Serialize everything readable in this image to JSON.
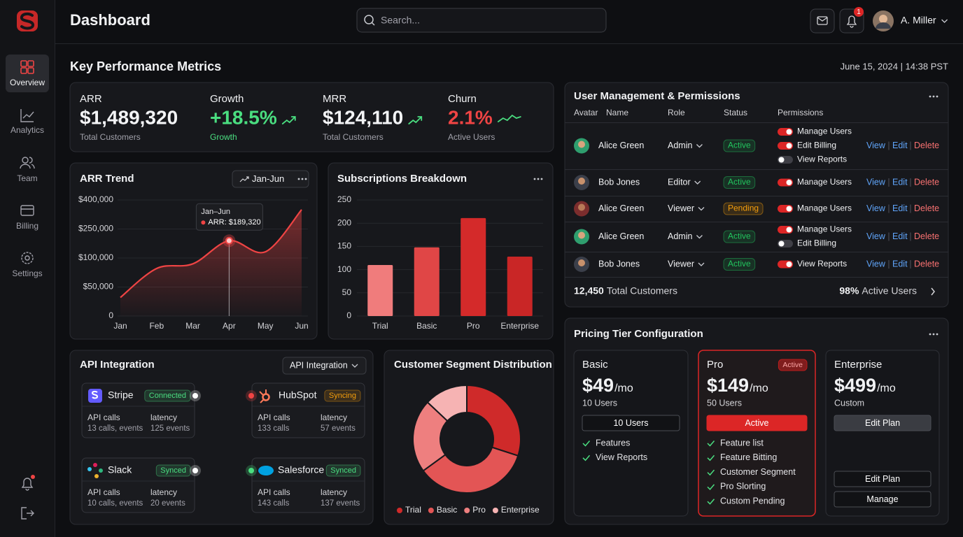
{
  "sidebar": {
    "nav": [
      "Overview",
      "Analytics",
      "Team",
      "Billing",
      "Settings"
    ]
  },
  "header": {
    "title": "Dashboard",
    "search_placeholder": "Search...",
    "notifications": 1,
    "user": "A. Miller"
  },
  "kpi": {
    "title": "Key Performance Metrics",
    "timestamp": "June 15, 2024 | 14:38 PST",
    "metrics": [
      {
        "label": "ARR",
        "value": "$1,489,320",
        "sub": "Total Customers",
        "color": "#f3f4f6",
        "sub_color": "#a1a1aa"
      },
      {
        "label": "Growth",
        "value": "+18.5%",
        "sub": "Growth",
        "color": "#4ade80",
        "sub_color": "#4ade80"
      },
      {
        "label": "MRR",
        "value": "$124,110",
        "sub": "Total Customers",
        "color": "#f3f4f6",
        "sub_color": "#a1a1aa"
      },
      {
        "label": "Churn",
        "value": "2.1%",
        "sub": "Active Users",
        "color": "#ef4444",
        "sub_color": "#a1a1aa"
      }
    ]
  },
  "chart_data": [
    {
      "type": "line",
      "title": "ARR Trend",
      "range": "Jan-Jun",
      "categories": [
        "Jan",
        "Feb",
        "Mar",
        "Apr",
        "May",
        "Jun"
      ],
      "values": [
        32000,
        82000,
        90000,
        189320,
        132000,
        350000
      ],
      "value_labels": [
        null,
        null,
        null,
        "ARR: $189,320",
        null,
        null
      ],
      "tooltip_title": "Jan–Jun",
      "color": "#ef4444",
      "ylim": [
        0,
        400000
      ],
      "yticks": [
        0,
        {
          "value": 50000,
          "label": "$50,000"
        },
        {
          "value": 100000,
          "label": "$100,000"
        },
        {
          "value": 250000,
          "label": "$250,000"
        },
        {
          "value": 400000,
          "label": "$400,000"
        }
      ],
      "grid": true
    },
    {
      "type": "bar",
      "title": "Subscriptions Breakdown",
      "categories": [
        "Trial",
        "Basic",
        "Pro",
        "Enterprise"
      ],
      "values": [
        110,
        148,
        211,
        128
      ],
      "colors": [
        "#f07c7c",
        "#e04646",
        "#d42a2a",
        "#c92626"
      ],
      "ylim": [
        0,
        250
      ],
      "yticks": [
        0,
        50,
        100,
        150,
        200,
        250
      ],
      "grid": true
    },
    {
      "type": "pie",
      "title": "Customer Segment Distribution",
      "categories": [
        "Trial",
        "Basic",
        "Pro",
        "Enterprise"
      ],
      "values": [
        30,
        35,
        22,
        13
      ],
      "colors": [
        "#cf2a2a",
        "#e35555",
        "#ee7f7f",
        "#f6b3b3"
      ]
    }
  ],
  "api": {
    "title": "API Integration",
    "selector": "API Integration",
    "calls_label": "API calls",
    "latency_label": "latency",
    "integrations": [
      {
        "name": "Stripe",
        "status": "Connected",
        "calls": "13 calls, events",
        "latency": "125 events",
        "color": "#4ade80"
      },
      {
        "name": "HubSpot",
        "status": "Syncing",
        "calls": "133 calls",
        "latency": "57 events",
        "color": "#f59e0b"
      },
      {
        "name": "Slack",
        "status": "Synced",
        "calls": "10 calls, events",
        "latency": "20 events",
        "color": "#4ade80"
      },
      {
        "name": "Salesforce",
        "status": "Synced",
        "calls": "143 calls",
        "latency": "137 events",
        "color": "#4ade80"
      }
    ]
  },
  "users": {
    "title": "User Management & Permissions",
    "columns": [
      "Avatar",
      "Name",
      "Role",
      "Status",
      "Permissions"
    ],
    "actions": [
      "View",
      "Edit",
      "Delete"
    ],
    "status_colors": {
      "Active": "#22c55e",
      "Pending": "#f59e0b"
    },
    "rows": [
      {
        "name": "Alice Green",
        "role": "Admin",
        "status": "Active",
        "permissions": [
          {
            "name": "Manage Users",
            "on": true
          },
          {
            "name": "Edit Billing",
            "on": true
          },
          {
            "name": "View Reports",
            "on": false
          }
        ]
      },
      {
        "name": "Bob Jones",
        "role": "Editor",
        "status": "Active",
        "permissions": [
          {
            "name": "Manage Users",
            "on": true
          }
        ]
      },
      {
        "name": "Alice Green",
        "role": "Viewer",
        "status": "Pending",
        "permissions": [
          {
            "name": "Manage Users",
            "on": true
          }
        ]
      },
      {
        "name": "Alice Green",
        "role": "Admin",
        "status": "Active",
        "permissions": [
          {
            "name": "Manage Users",
            "on": true
          },
          {
            "name": "Edit Billing",
            "on": false
          }
        ]
      },
      {
        "name": "Bob Jones",
        "role": "Viewer",
        "status": "Active",
        "permissions": [
          {
            "name": "View Reports",
            "on": true
          }
        ]
      }
    ],
    "footer": {
      "total": "12,450",
      "total_label": "Total Customers",
      "active": "98%",
      "active_label": "Active Users"
    }
  },
  "pricing": {
    "title": "Pricing Tier Configuration",
    "tiers": [
      {
        "name": "Basic",
        "price": "$49",
        "unit": "/mo",
        "users": "10 Users",
        "buttons": [
          "10 Users"
        ],
        "features": [
          "Features",
          "View Reports"
        ]
      },
      {
        "name": "Pro",
        "badge": "Active",
        "price": "$149",
        "unit": "/mo",
        "users": "50 Users",
        "buttons": [
          "Active"
        ],
        "features": [
          "Feature list",
          "Feature Bitting",
          "Customer Segment",
          "Pro Slorting",
          "Custom Pending"
        ]
      },
      {
        "name": "Enterprise",
        "price": "$499",
        "unit": "/mo",
        "users": "Custom",
        "buttons": [
          "Edit Plan",
          "Edit Plan",
          "Manage"
        ],
        "features": []
      }
    ]
  }
}
